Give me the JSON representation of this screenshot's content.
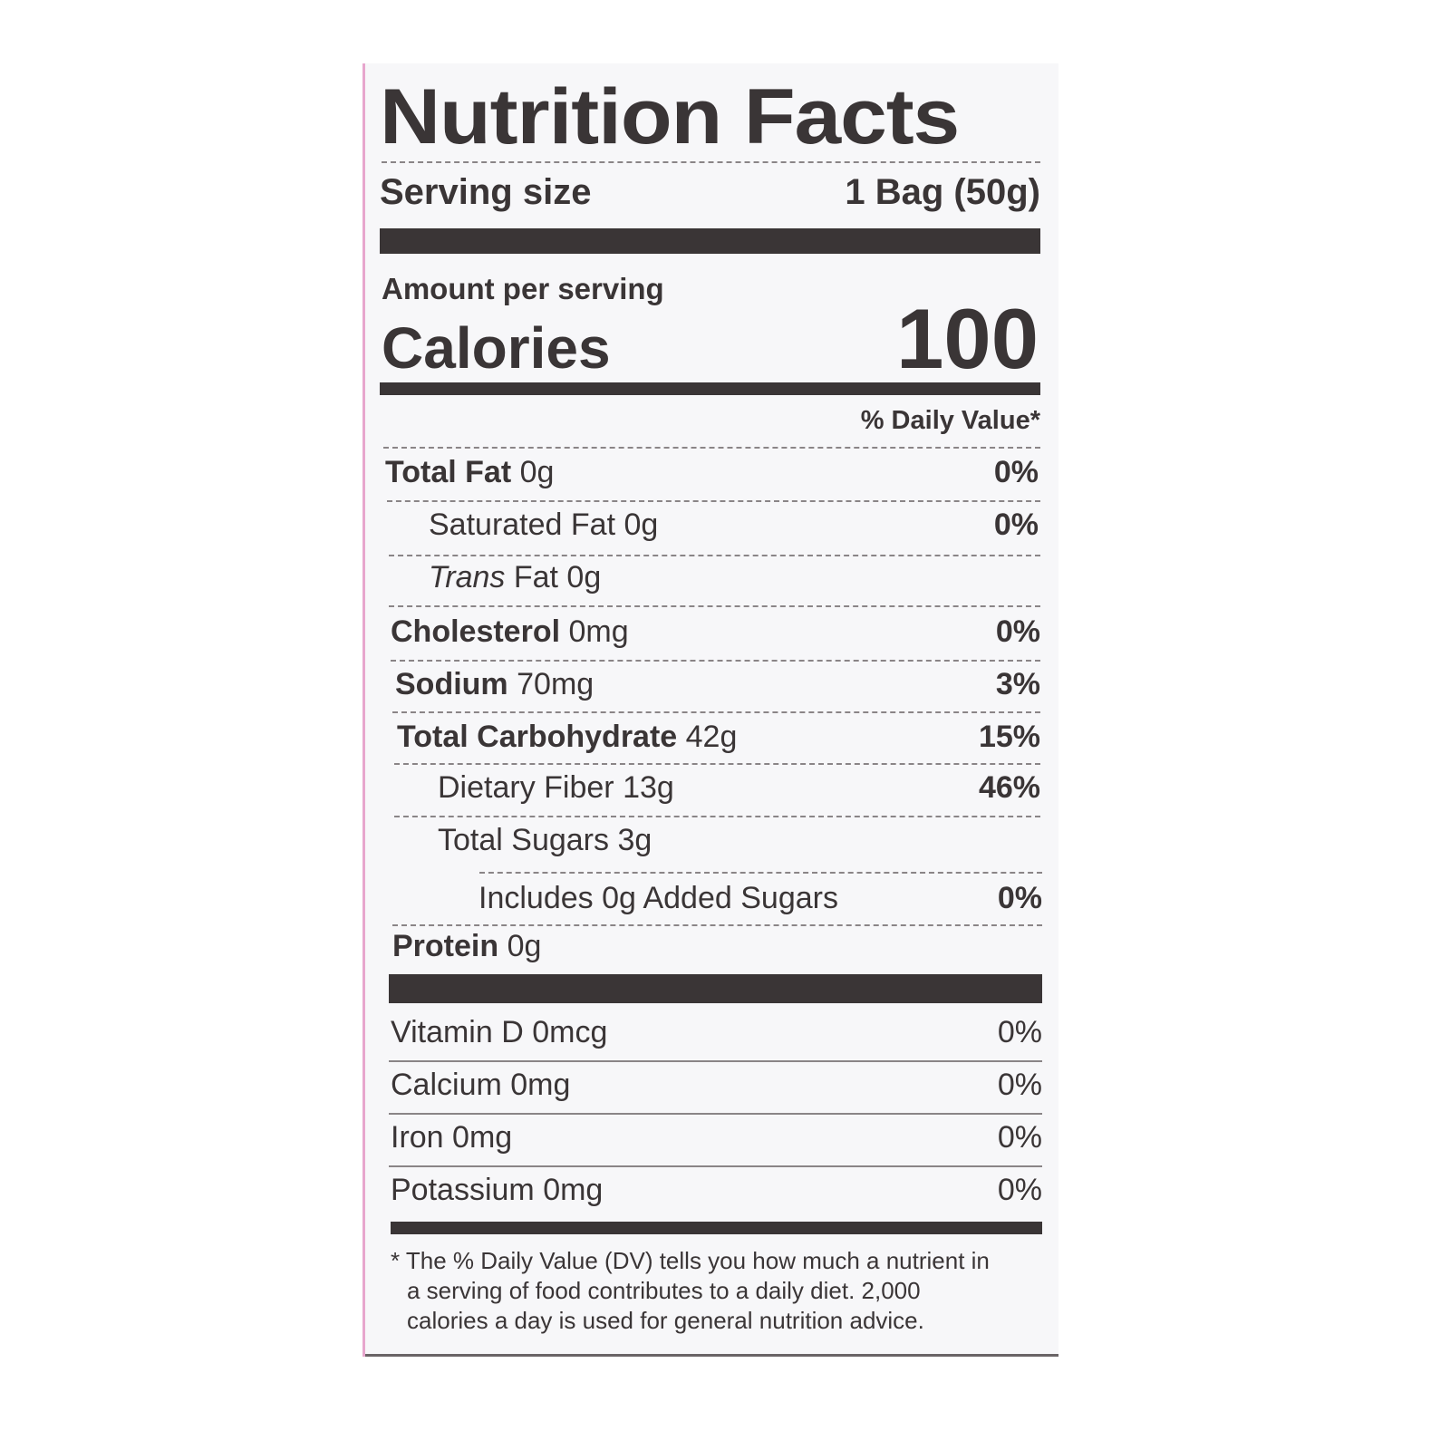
{
  "title": "Nutrition Facts",
  "serving": {
    "label": "Serving size",
    "value": "1 Bag (50g)"
  },
  "amount_per_serving": "Amount per serving",
  "calories": {
    "label": "Calories",
    "value": "100"
  },
  "daily_value_header": "% Daily Value*",
  "nutrients": [
    {
      "name": "Total Fat",
      "amount": "0g",
      "dv": "0%"
    },
    {
      "name": "Saturated Fat",
      "amount": "0g",
      "dv": "0%"
    },
    {
      "name": "Trans",
      "name_suffix": "Fat",
      "amount": "0g",
      "dv": ""
    },
    {
      "name": "Cholesterol",
      "amount": "0mg",
      "dv": "0%"
    },
    {
      "name": "Sodium",
      "amount": "70mg",
      "dv": "3%"
    },
    {
      "name": "Total Carbohydrate",
      "amount": "42g",
      "dv": "15%"
    },
    {
      "name": "Dietary Fiber",
      "amount": "13g",
      "dv": "46%"
    },
    {
      "name": "Total Sugars",
      "amount": "3g",
      "dv": ""
    },
    {
      "name": "Includes 0g Added Sugars",
      "amount": "",
      "dv": "0%"
    },
    {
      "name": "Protein",
      "amount": "0g",
      "dv": ""
    }
  ],
  "vitamins": [
    {
      "name": "Vitamin D",
      "amount": "0mcg",
      "dv": "0%"
    },
    {
      "name": "Calcium",
      "amount": "0mg",
      "dv": "0%"
    },
    {
      "name": "Iron",
      "amount": "0mg",
      "dv": "0%"
    },
    {
      "name": "Potassium",
      "amount": "0mg",
      "dv": "0%"
    }
  ],
  "footnote": {
    "line1": "* The % Daily Value (DV) tells you how much a nutrient in",
    "line2": "a serving of food contributes to a daily diet. 2,000",
    "line3": "calories a day is used for general nutrition advice."
  }
}
